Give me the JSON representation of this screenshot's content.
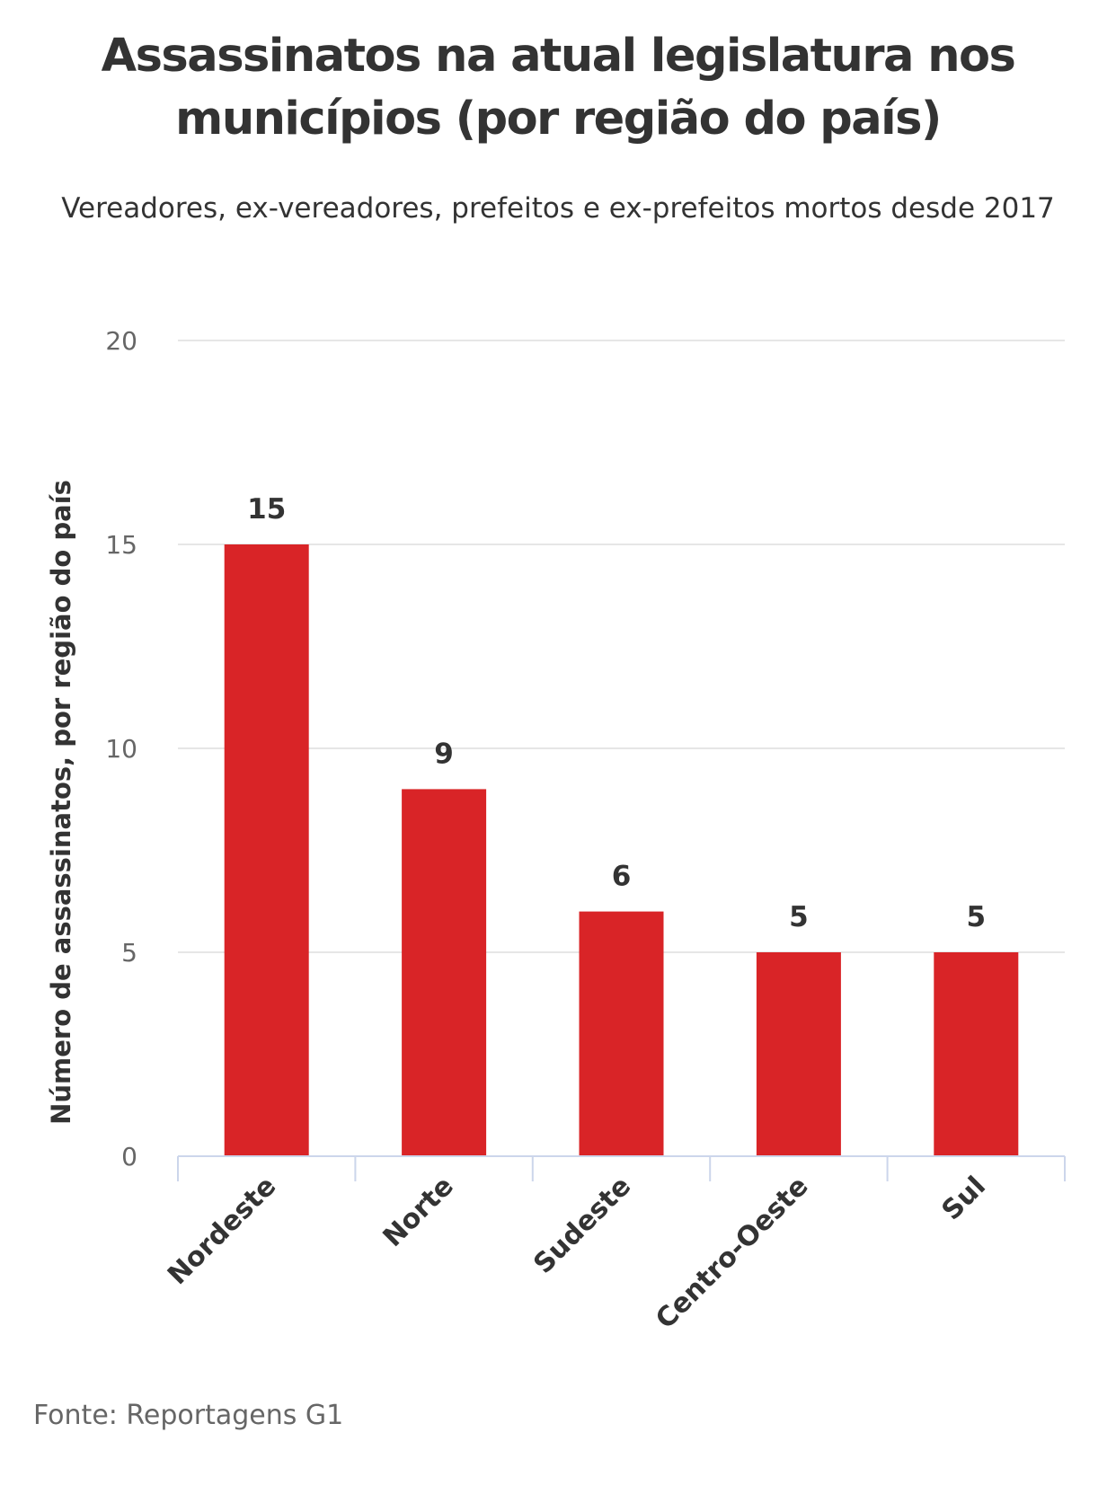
{
  "header": {
    "title": "Assassinatos na atual legislatura nos municípios (por região do país)",
    "subtitle": "Vereadores, ex-vereadores, prefeitos e ex-prefeitos mortos desde 2017"
  },
  "footer": {
    "source": "Fonte: Reportagens G1"
  },
  "colors": {
    "bar": "#d92427",
    "grid": "#e6e6e6",
    "axis": "#ccd6eb",
    "text": "#333333",
    "tick_text": "#666666"
  },
  "chart_data": {
    "type": "bar",
    "title": "Assassinatos na atual legislatura nos municípios (por região do país)",
    "subtitle": "Vereadores, ex-vereadores, prefeitos e ex-prefeitos mortos desde 2017",
    "categories": [
      "Nordeste",
      "Norte",
      "Sudeste",
      "Centro-Oeste",
      "Sul"
    ],
    "values": [
      15,
      9,
      6,
      5,
      5
    ],
    "data_labels": [
      "15",
      "9",
      "6",
      "5",
      "5"
    ],
    "xlabel": "",
    "ylabel": "Número de assassinatos, por região do país",
    "ylim": [
      0,
      20
    ],
    "yticks": [
      "0",
      "5",
      "10",
      "15",
      "20"
    ],
    "grid": true,
    "legend": "none"
  }
}
